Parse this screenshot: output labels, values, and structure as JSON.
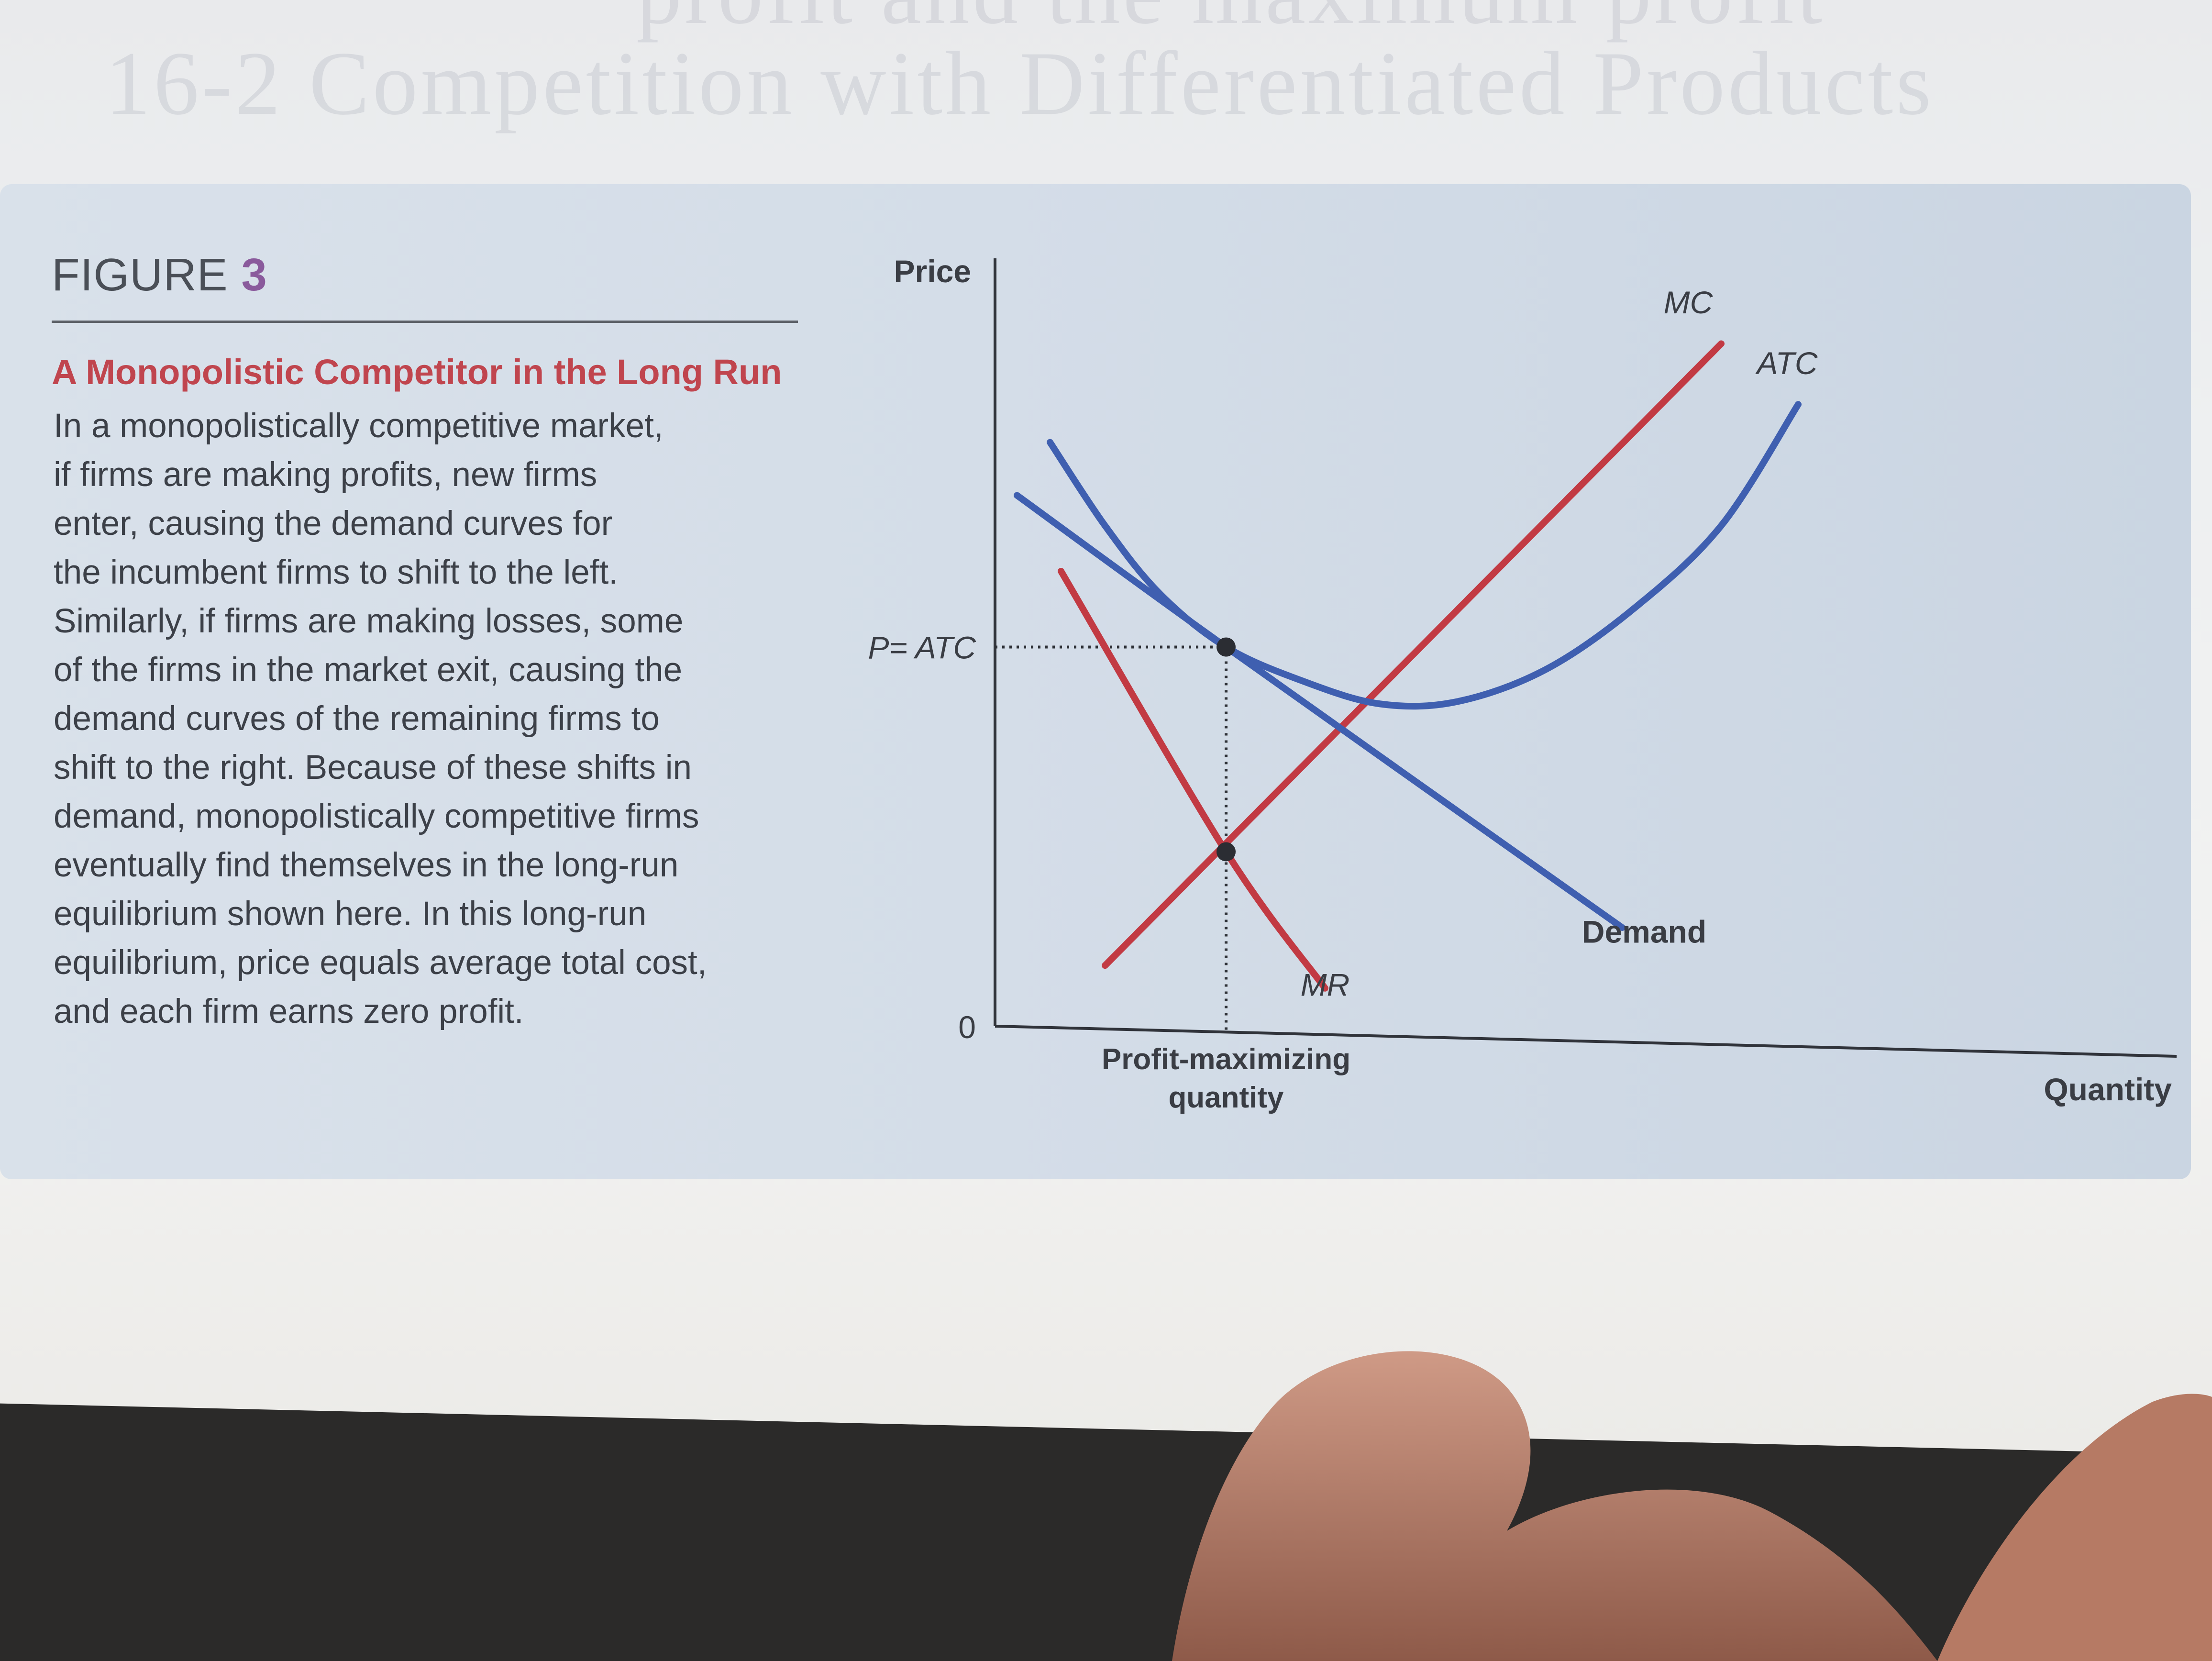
{
  "figure": {
    "label": "FIGURE",
    "number": "3",
    "title": "A Monopolistic Competitor in the Long Run",
    "body_lines": [
      "In a monopolistically competitive market,",
      "if firms are making profits, new firms",
      "enter, causing the demand curves for",
      "the incumbent firms to shift to the left.",
      "Similarly, if firms are making losses, some",
      "of the firms in the market exit, causing the",
      "demand curves of the remaining firms to",
      "shift to the right. Because of these shifts in",
      "demand, monopolistically competitive firms",
      "eventually find themselves in the long-run",
      "equilibrium shown here. In this long-run",
      "equilibrium, price equals average total cost,",
      "and each firm earns zero profit."
    ]
  },
  "bleed_through": {
    "line1": "profit and the maximum profit",
    "line2": "16-2 Competition with Differentiated Products"
  },
  "chart_data": {
    "type": "line",
    "title": "",
    "xlabel": "Quantity",
    "ylabel": "Price",
    "origin_label": "0",
    "xlim": [
      0,
      10
    ],
    "ylim": [
      0,
      10
    ],
    "grid": false,
    "ticks": {
      "y": [
        {
          "value": 5.0,
          "label": "P= ATC"
        }
      ],
      "x": [
        {
          "value": 2.1,
          "label_line1": "Profit-maximizing",
          "label_line2": "quantity"
        }
      ]
    },
    "series": [
      {
        "name": "MC",
        "color": "#c23a43",
        "x": [
          1.0,
          6.6
        ],
        "y": [
          0.8,
          9.0
        ]
      },
      {
        "name": "ATC",
        "color": "#3f5fb0",
        "x": [
          0.5,
          1.0,
          1.5,
          2.1,
          2.8,
          3.5,
          4.2,
          5.0,
          5.8,
          6.6,
          7.3
        ],
        "y": [
          7.7,
          6.6,
          5.7,
          5.0,
          4.55,
          4.25,
          4.28,
          4.7,
          5.5,
          6.6,
          8.2
        ]
      },
      {
        "name": "Demand",
        "color": "#3f5fb0",
        "x": [
          0.2,
          2.1,
          5.7
        ],
        "y": [
          7.0,
          5.0,
          1.3
        ]
      },
      {
        "name": "MR",
        "color": "#c23a43",
        "x": [
          0.6,
          2.1,
          3.0
        ],
        "y": [
          6.0,
          2.3,
          0.5
        ]
      }
    ],
    "points": [
      {
        "x": 2.1,
        "y": 5.0
      },
      {
        "x": 2.1,
        "y": 2.3
      }
    ],
    "labels": [
      {
        "text": "MC",
        "x": 6.3,
        "y": 9.4
      },
      {
        "text": "ATC",
        "x": 7.2,
        "y": 8.6
      },
      {
        "text": "Demand",
        "x": 5.9,
        "y": 1.1
      },
      {
        "text": "MR",
        "x": 3.0,
        "y": 0.4
      }
    ]
  },
  "colors": {
    "accent_red": "#c23a43",
    "accent_blue": "#3f5fb0",
    "figure_number": "#8a5a9c",
    "title_red": "#c0454e"
  }
}
